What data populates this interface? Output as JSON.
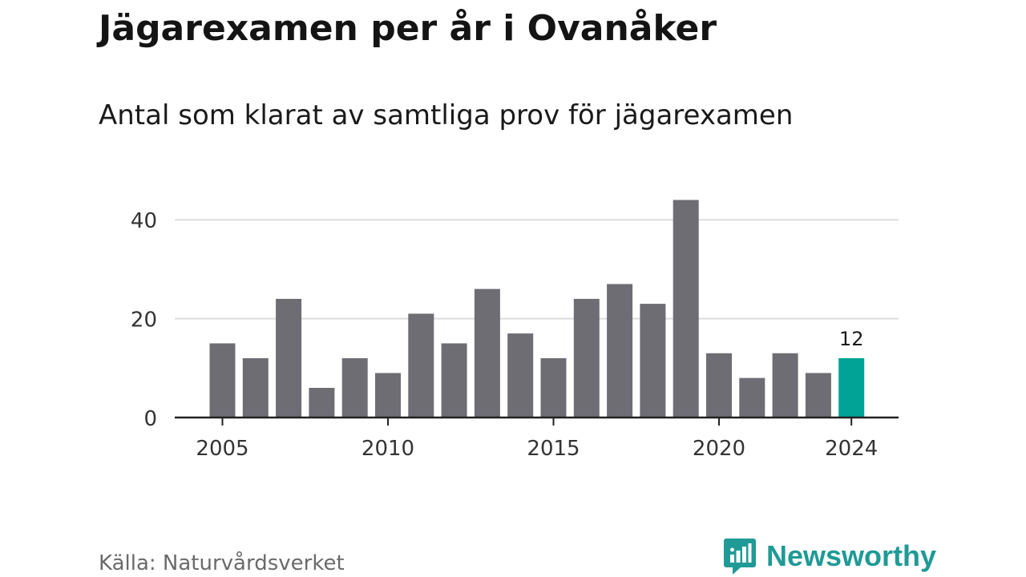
{
  "title": "Jägarexamen per år i Ovanåker",
  "subtitle": "Antal som klarat av samtliga prov för jägarexamen",
  "source": "Källa: Naturvårdsverket",
  "brand": {
    "name": "Newsworthy",
    "icon": "chat-bar-chart-icon",
    "color": "#1f9a96"
  },
  "chart_data": {
    "type": "bar",
    "x": [
      2005,
      2006,
      2007,
      2008,
      2009,
      2010,
      2011,
      2012,
      2013,
      2014,
      2015,
      2016,
      2017,
      2018,
      2019,
      2020,
      2021,
      2022,
      2023,
      2024
    ],
    "values": [
      15,
      12,
      24,
      6,
      12,
      9,
      21,
      15,
      26,
      17,
      12,
      24,
      27,
      23,
      44,
      13,
      8,
      13,
      9,
      12
    ],
    "x_ticks": [
      "2005",
      "2010",
      "2015",
      "2020",
      "2024"
    ],
    "y_ticks": [
      "0",
      "20",
      "40"
    ],
    "ylim": [
      0,
      47
    ],
    "highlight": {
      "x": 2024,
      "label": "12"
    },
    "grid": true,
    "colors": {
      "bar": "#6e6d74",
      "highlight": "#00a396",
      "grid": "#dddddd",
      "axis": "#222222"
    }
  }
}
